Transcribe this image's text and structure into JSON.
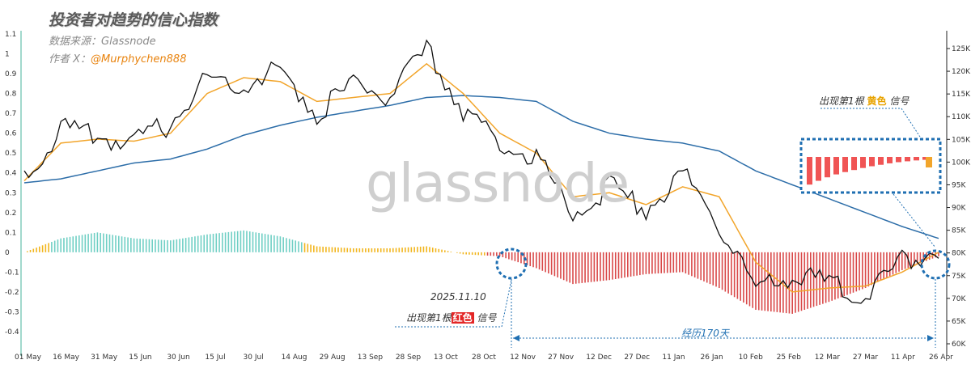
{
  "header": {
    "title": "投资者对趋势的信心指数",
    "source": "数据来源：Glassnode",
    "author_prefix": "作者 X：",
    "author_handle": "@Murphychen888"
  },
  "watermark": "glassnode",
  "annotations": {
    "red_date": "2025.11.10",
    "red_pre": "出现第1根",
    "red_word": "红色",
    "red_post": "信号",
    "yellow_pre": "出现第1根",
    "yellow_word": "黄色",
    "yellow_post": "信号",
    "duration": "经历170天"
  },
  "colors": {
    "price": "#111111",
    "ma_short": "#f2a52b",
    "ma_long": "#2c6da8",
    "hist_teal": "#6fcfc4",
    "hist_yellow": "#f2b51c",
    "hist_red": "#d94848",
    "callout": "#1f6fb2"
  },
  "chart_data": {
    "type": "line",
    "x_ticks": [
      "01 May",
      "16 May",
      "31 May",
      "15 Jun",
      "30 Jun",
      "15 Jul",
      "30 Jul",
      "14 Aug",
      "29 Aug",
      "13 Sep",
      "28 Sep",
      "13 Oct",
      "28 Oct",
      "12 Nov",
      "27 Nov",
      "12 Dec",
      "27 Dec",
      "11 Jan",
      "26 Jan",
      "10 Feb",
      "25 Feb",
      "12 Mar",
      "27 Mar",
      "11 Apr",
      "26 Apr"
    ],
    "y_left_ticks": [
      "1.1",
      "1",
      "0.9",
      "0.8",
      "0.7",
      "0.6",
      "0.5",
      "0.4",
      "0.3",
      "0.2",
      "0.1",
      "0",
      "-0.1",
      "-0.2",
      "-0.3",
      "-0.4"
    ],
    "y_right_ticks": [
      "125K",
      "120K",
      "115K",
      "110K",
      "105K",
      "100K",
      "95K",
      "90K",
      "85K",
      "80K",
      "75K",
      "70K",
      "65K",
      "60K"
    ],
    "ylim_left": [
      -0.4,
      1.1
    ],
    "ylim_right": [
      60000,
      125000
    ],
    "series": [
      {
        "name": "",
        "axis": "left",
        "x": [
          "05-01",
          "05-16",
          "05-31",
          "06-15",
          "06-30",
          "07-15",
          "07-30",
          "08-14",
          "08-29",
          "09-13",
          "09-28",
          "10-06",
          "10-13",
          "10-28",
          "11-12",
          "11-27",
          "12-12",
          "12-27",
          "01-11",
          "01-26",
          "02-10",
          "02-25",
          "03-12",
          "03-27",
          "04-11",
          "04-26"
        ],
        "values": [
          0.38,
          0.62,
          0.58,
          0.55,
          0.65,
          0.88,
          0.85,
          0.92,
          0.7,
          0.85,
          0.78,
          1.02,
          0.72,
          0.55,
          0.48,
          0.2,
          0.33,
          0.22,
          0.4,
          0.15,
          -0.2,
          -0.12,
          -0.15,
          -0.22,
          -0.05,
          0.02
        ]
      },
      {
        "name": "",
        "axis": "left",
        "x": [
          "05-01",
          "05-16",
          "05-31",
          "06-15",
          "06-30",
          "07-15",
          "07-30",
          "08-14",
          "08-29",
          "09-13",
          "09-28",
          "10-06",
          "10-13",
          "10-28",
          "11-12",
          "11-27",
          "12-12",
          "12-27",
          "01-11",
          "01-26",
          "02-10",
          "02-25",
          "03-12",
          "03-27",
          "04-11",
          "04-26"
        ],
        "values": [
          0.36,
          0.55,
          0.57,
          0.56,
          0.6,
          0.8,
          0.88,
          0.86,
          0.76,
          0.78,
          0.8,
          0.95,
          0.8,
          0.6,
          0.5,
          0.28,
          0.3,
          0.24,
          0.33,
          0.28,
          -0.05,
          -0.2,
          -0.18,
          -0.17,
          -0.1,
          0.0
        ]
      },
      {
        "name": "",
        "axis": "left",
        "x": [
          "05-01",
          "05-16",
          "05-31",
          "06-15",
          "06-30",
          "07-15",
          "07-30",
          "08-14",
          "08-29",
          "09-13",
          "09-28",
          "10-06",
          "10-13",
          "10-28",
          "11-12",
          "11-27",
          "12-12",
          "12-27",
          "01-11",
          "01-26",
          "02-10",
          "02-25",
          "03-12",
          "03-27",
          "04-11",
          "04-26"
        ],
        "values": [
          0.35,
          0.37,
          0.41,
          0.45,
          0.47,
          0.52,
          0.59,
          0.64,
          0.68,
          0.71,
          0.74,
          0.78,
          0.79,
          0.78,
          0.76,
          0.66,
          0.6,
          0.57,
          0.55,
          0.51,
          0.41,
          0.34,
          0.27,
          0.2,
          0.13,
          0.07
        ]
      },
      {
        "name": "",
        "axis": "left",
        "type": "bar",
        "x": [
          "05-01",
          "05-16",
          "05-31",
          "06-15",
          "06-30",
          "07-15",
          "07-30",
          "08-14",
          "08-29",
          "09-13",
          "09-28",
          "10-06",
          "10-13",
          "10-28",
          "11-12",
          "11-27",
          "12-12",
          "12-27",
          "01-11",
          "01-26",
          "02-10",
          "02-25",
          "03-12",
          "03-27",
          "04-11",
          "04-26"
        ],
        "values": [
          0.0,
          0.07,
          0.1,
          0.07,
          0.06,
          0.09,
          0.11,
          0.08,
          0.03,
          0.02,
          0.02,
          0.03,
          -0.01,
          -0.02,
          -0.08,
          -0.16,
          -0.14,
          -0.11,
          -0.1,
          -0.18,
          -0.29,
          -0.31,
          -0.25,
          -0.18,
          -0.09,
          -0.02
        ]
      }
    ]
  }
}
